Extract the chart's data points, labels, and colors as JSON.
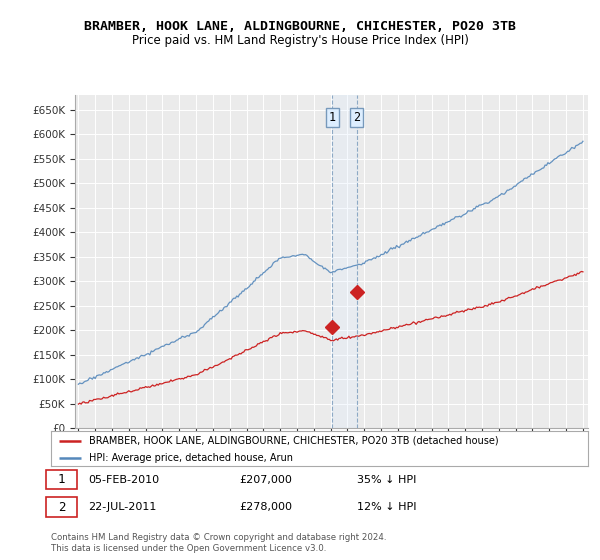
{
  "title": "BRAMBER, HOOK LANE, ALDINGBOURNE, CHICHESTER, PO20 3TB",
  "subtitle": "Price paid vs. HM Land Registry's House Price Index (HPI)",
  "hpi_color": "#5588bb",
  "price_color": "#cc2222",
  "annotation_fill": "#ddeeff",
  "annotation_border": "#7799bb",
  "background_color": "#ffffff",
  "plot_bg": "#ebebeb",
  "grid_color": "#ffffff",
  "ylim": [
    0,
    680000
  ],
  "yticks": [
    0,
    50000,
    100000,
    150000,
    200000,
    250000,
    300000,
    350000,
    400000,
    450000,
    500000,
    550000,
    600000,
    650000
  ],
  "xlabel_start": 1995,
  "xlabel_end": 2025,
  "legend_entries": [
    "BRAMBER, HOOK LANE, ALDINGBOURNE, CHICHESTER, PO20 3TB (detached house)",
    "HPI: Average price, detached house, Arun"
  ],
  "transactions": [
    {
      "label": "1",
      "date": "05-FEB-2010",
      "price": "£207,000",
      "hpi_pct": "35% ↓ HPI",
      "year": 2010.1,
      "value": 207000
    },
    {
      "label": "2",
      "date": "22-JUL-2011",
      "price": "£278,000",
      "hpi_pct": "12% ↓ HPI",
      "year": 2011.55,
      "value": 278000
    }
  ],
  "footnote1": "Contains HM Land Registry data © Crown copyright and database right 2024.",
  "footnote2": "This data is licensed under the Open Government Licence v3.0."
}
